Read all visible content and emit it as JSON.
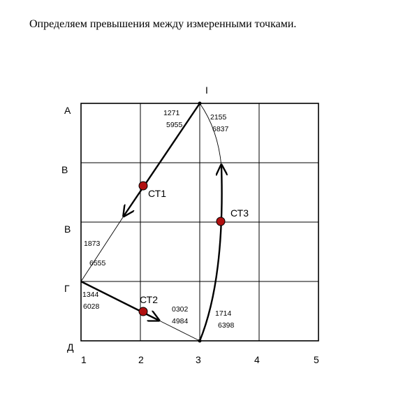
{
  "heading": "Определяем превышения между измеренными точками.",
  "row_labels": [
    "А",
    "В",
    "В",
    "Г",
    "Д"
  ],
  "col_labels": [
    "1",
    "2",
    "3",
    "4",
    "5"
  ],
  "top_label": "I",
  "readings": {
    "a1": "1271",
    "a2": "5955",
    "b1": "2155",
    "b2": "6837",
    "c1": "1873",
    "c2": "6555",
    "d1": "1344",
    "d2": "6028",
    "e1": "0302",
    "e2": "4984",
    "f1": "1714",
    "f2": "6398"
  },
  "stations": [
    "СТ1",
    "СТ2",
    "СТ3"
  ],
  "colors": {
    "station_fill": "#b01010",
    "line": "#000000"
  }
}
